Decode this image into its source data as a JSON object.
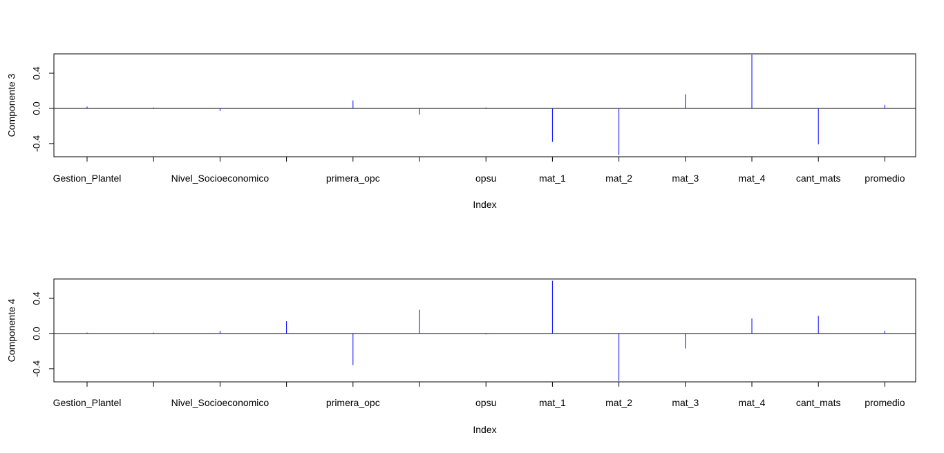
{
  "chart_data": [
    {
      "type": "bar",
      "style": "vertical-lines",
      "ylabel": "Componente 3",
      "xlabel": "Index",
      "categories": [
        "Gestion_Plantel",
        "",
        "Nivel_Socioeconomico",
        "",
        "primera_opc",
        "",
        "opsu",
        "mat_1",
        "mat_2",
        "mat_3",
        "mat_4",
        "cant_mats",
        "promedio"
      ],
      "values": [
        0.02,
        0.01,
        -0.03,
        0.0,
        0.09,
        -0.07,
        0.01,
        -0.38,
        -0.53,
        0.16,
        0.61,
        -0.41,
        0.04
      ],
      "ylim": [
        -0.55,
        0.62
      ],
      "yticks": [
        "-0.4",
        "0.0",
        "0.4"
      ],
      "line_color": "#0000ff",
      "reference_line": 0
    },
    {
      "type": "bar",
      "style": "vertical-lines",
      "ylabel": "Componente 4",
      "xlabel": "Index",
      "categories": [
        "Gestion_Plantel",
        "",
        "Nivel_Socioeconomico",
        "",
        "primera_opc",
        "",
        "opsu",
        "mat_1",
        "mat_2",
        "mat_3",
        "mat_4",
        "cant_mats",
        "promedio"
      ],
      "values": [
        0.01,
        0.01,
        0.03,
        0.14,
        -0.36,
        0.27,
        -0.01,
        0.6,
        -0.54,
        -0.17,
        0.17,
        0.2,
        0.03
      ],
      "ylim": [
        -0.55,
        0.62
      ],
      "yticks": [
        "-0.4",
        "0.0",
        "0.4"
      ],
      "line_color": "#0000ff",
      "reference_line": 0
    }
  ]
}
